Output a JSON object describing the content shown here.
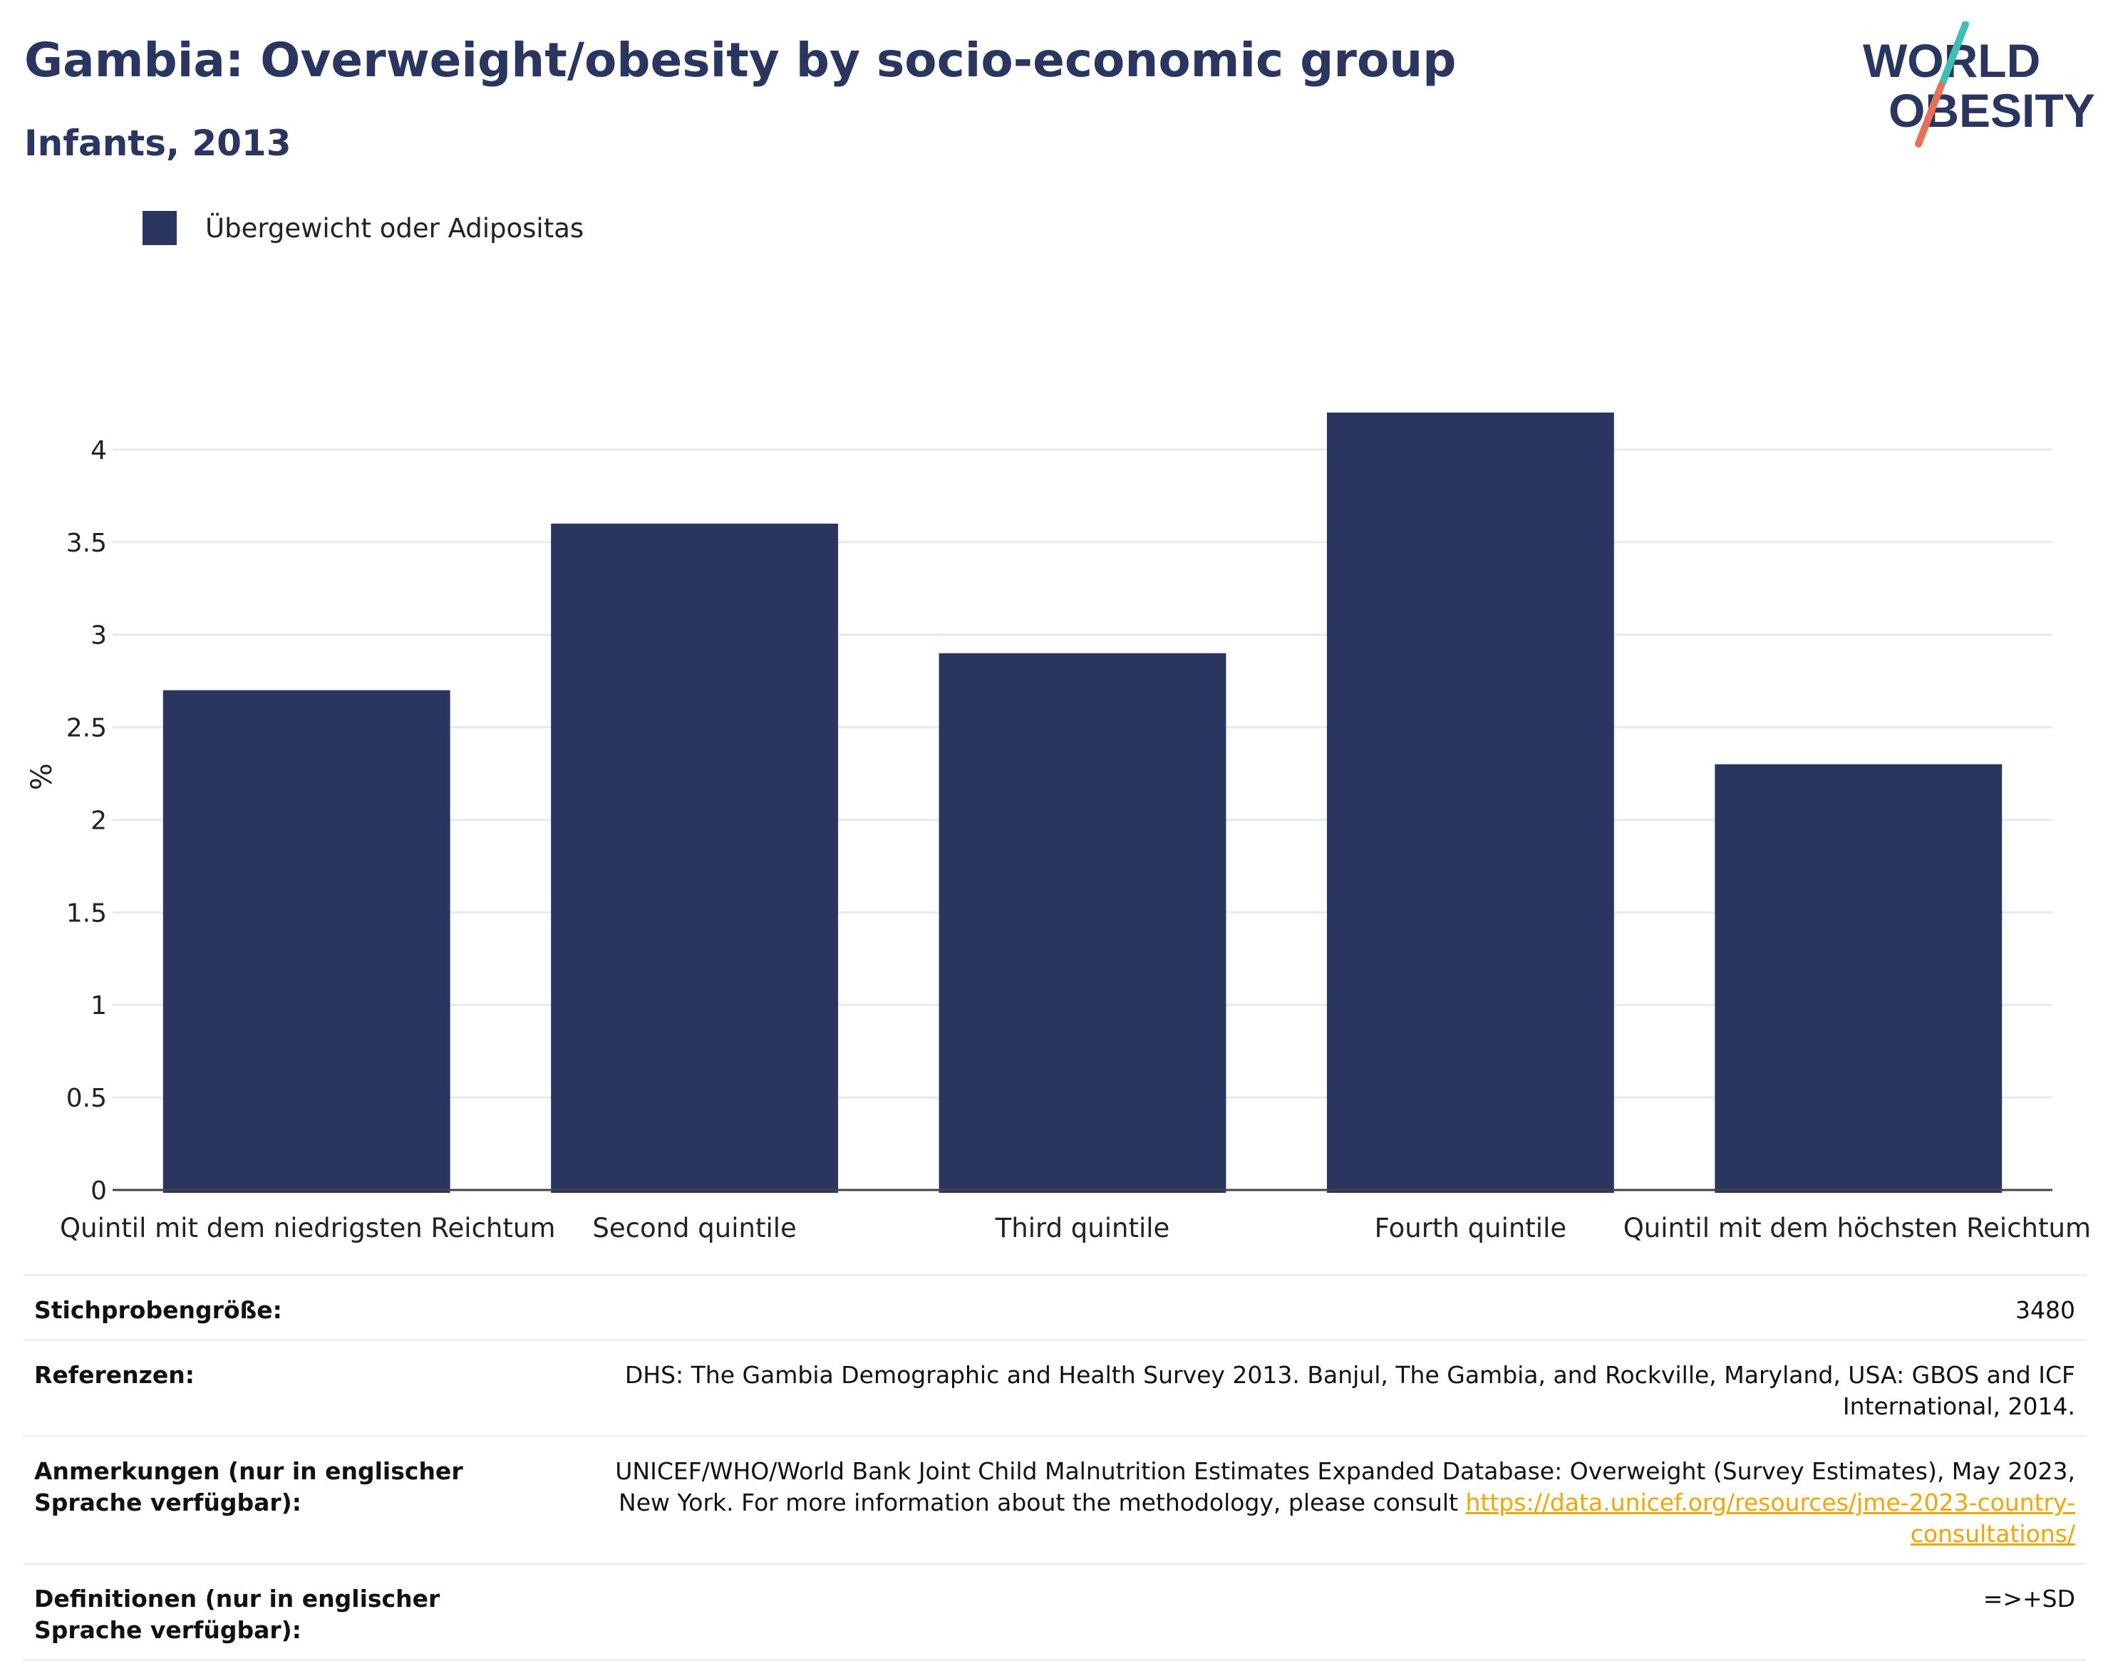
{
  "header": {
    "title": "Gambia: Overweight/obesity by socio-economic group",
    "subtitle": "Infants, 2013"
  },
  "logo": {
    "line1": "WORLD",
    "line2": "OBESITY",
    "colors": {
      "navy": "#2b3660",
      "teal": "#3fbfb3",
      "coral": "#e8705a"
    }
  },
  "legend": {
    "label": "Übergewicht oder Adipositas",
    "color": "#2b3660"
  },
  "chart_data": {
    "type": "bar",
    "categories": [
      "Quintil mit dem niedrigsten Reichtum",
      "Second quintile",
      "Third quintile",
      "Fourth quintile",
      "Quintil mit dem höchsten Reichtum"
    ],
    "series": [
      {
        "name": "Übergewicht oder Adipositas",
        "values": [
          2.7,
          3.6,
          2.9,
          4.2,
          2.3
        ]
      }
    ],
    "ylabel": "%",
    "ylim": [
      0,
      4.35
    ],
    "yticks": [
      0,
      0.5,
      1,
      1.5,
      2,
      2.5,
      3,
      3.5,
      4
    ],
    "ytick_labels": [
      "0",
      "0.5",
      "1",
      "1.5",
      "2",
      "2.5",
      "3",
      "3.5",
      "4"
    ],
    "grid": true,
    "legend_position": "top-left",
    "bar_color": "#2b3660"
  },
  "meta": {
    "sample_size_label": "Stichprobengröße:",
    "sample_size_value": "3480",
    "references_label": "Referenzen:",
    "references_value": "DHS: The Gambia Demographic and Health Survey 2013. Banjul, The Gambia, and Rockville, Maryland, USA: GBOS and ICF International, 2014.",
    "notes_label": "Anmerkungen (nur in englischer Sprache verfügbar):",
    "notes_value": "UNICEF/WHO/World Bank Joint Child Malnutrition Estimates Expanded Database: Overweight (Survey Estimates), May 2023, New York. For more information about the methodology, please consult",
    "notes_link": "https://data.unicef.org/resources/jme-2023-country-consultations/",
    "definitions_label": "Definitionen (nur in englischer Sprache verfügbar):",
    "definitions_value": "=>+SD"
  }
}
